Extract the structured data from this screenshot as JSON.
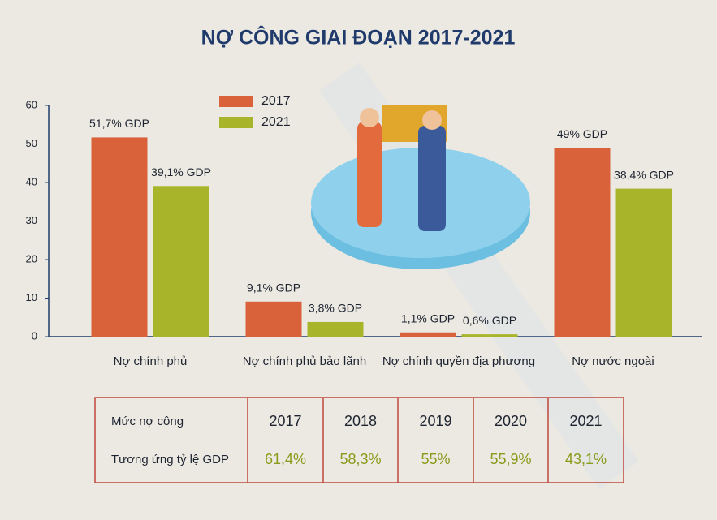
{
  "chart_data": {
    "type": "bar",
    "title": "NỢ CÔNG GIAI ĐOẠN 2017-2021",
    "categories": [
      "Nợ chính phủ",
      "Nợ chính phủ bảo lãnh",
      "Nợ chính quyền địa phương",
      "Nợ nước ngoài"
    ],
    "series": [
      {
        "name": "2017",
        "color": "#d9623b",
        "values": [
          51.7,
          9.1,
          1.1,
          49
        ],
        "value_labels": [
          "51,7% GDP",
          "9,1% GDP",
          "1,1% GDP",
          "49% GDP"
        ]
      },
      {
        "name": "2021",
        "color": "#a8b52a",
        "values": [
          39.1,
          3.8,
          0.6,
          38.4
        ],
        "value_labels": [
          "39,1% GDP",
          "3,8% GDP",
          "0,6% GDP",
          "38,4% GDP"
        ]
      }
    ],
    "ylim": [
      0,
      60
    ],
    "yticks": [
      0,
      10,
      20,
      30,
      40,
      50,
      60
    ],
    "grid": false
  },
  "table": {
    "header": [
      "Mức nợ công",
      "2017",
      "2018",
      "2019",
      "2020",
      "2021"
    ],
    "rows": [
      [
        "Tương ứng tỷ lệ GDP",
        "61,4%",
        "58,3%",
        "55%",
        "55,9%",
        "43,1%"
      ]
    ]
  }
}
